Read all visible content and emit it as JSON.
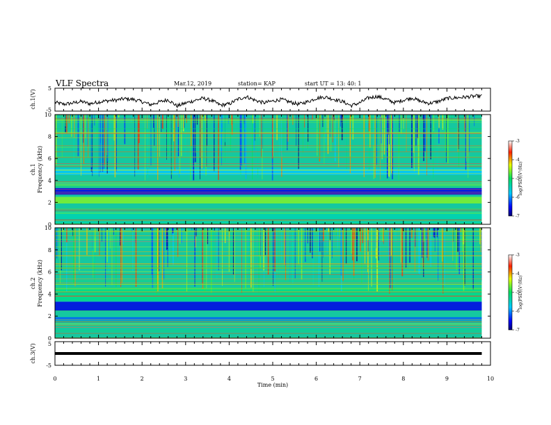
{
  "header": {
    "title": "VLF Spectra",
    "date": "Mar.12, 2019",
    "station": "station= KAP",
    "start": "start UT = 13: 40: 1"
  },
  "colors": {
    "spectrogram_background": "#15c8a0",
    "waveform_line": "#000000"
  },
  "chart_data": [
    {
      "type": "line",
      "name_label": "ch.1(V)",
      "ylabel": "ch.1(V)",
      "ylim": [
        -5,
        5
      ],
      "yticks": [
        "5",
        "-5"
      ],
      "xlim": [
        0,
        10
      ],
      "x": [
        0,
        0.2,
        0.4,
        0.6,
        0.8,
        1.0,
        1.2,
        1.4,
        1.6,
        1.8,
        2.0,
        2.2,
        2.4,
        2.6,
        2.8,
        3.0,
        3.2,
        3.4,
        3.6,
        3.8,
        4.0,
        4.2,
        4.4,
        4.6,
        4.8,
        5.0,
        5.2,
        5.4,
        5.6,
        5.8,
        6.0,
        6.2,
        6.4,
        6.6,
        6.8,
        7.0,
        7.2,
        7.4,
        7.6,
        7.8,
        8.0,
        8.2,
        8.4,
        8.6,
        8.8,
        9.0,
        9.2,
        9.4,
        9.6,
        9.8
      ],
      "y": [
        -1.2,
        -2.0,
        -1.5,
        -0.8,
        -1.8,
        -1.0,
        -0.5,
        -0.2,
        0.4,
        0.1,
        -0.9,
        -2.2,
        -1.0,
        0.0,
        -2.8,
        -1.5,
        -0.4,
        0.6,
        -0.4,
        -2.4,
        -1.9,
        0.2,
        1.3,
        -0.3,
        -1.4,
        -0.6,
        0.1,
        -1.1,
        -2.0,
        -0.9,
        0.6,
        1.2,
        0.2,
        -0.8,
        -2.6,
        -1.4,
        0.8,
        1.4,
        0.2,
        -1.3,
        -0.2,
        0.8,
        -0.8,
        -1.6,
        -0.8,
        0.5,
        0.8,
        1.1,
        1.4,
        1.6
      ]
    },
    {
      "type": "heatmap",
      "ylabel": "ch.1 Frequency (kHz)",
      "ylabel_line1": "ch.1",
      "ylabel_line2": "Frequency (kHz)",
      "xlim": [
        0,
        10
      ],
      "ylim": [
        0,
        10
      ],
      "yticks": [
        "0",
        "2",
        "4",
        "6",
        "8",
        "10"
      ],
      "bands": [
        {
          "from": 2.7,
          "to": 3.3,
          "level": -6.6
        },
        {
          "from": 1.9,
          "to": 2.5,
          "level": -4.6
        },
        {
          "from": 4.5,
          "to": 5.1,
          "level": -5.8
        },
        {
          "from": 0.0,
          "to": 1.2,
          "level": -5.4
        }
      ],
      "colorbar": {
        "label": "log(PSD)(V²/Hz)",
        "range": [
          -7,
          -3
        ],
        "ticks": [
          "-3",
          "-4",
          "-5",
          "-6",
          "-7"
        ]
      }
    },
    {
      "type": "heatmap",
      "ylabel": "ch.2 Frequency (kHz)",
      "ylabel_line1": "ch.2",
      "ylabel_line2": "Frequency (kHz)",
      "xlim": [
        0,
        10
      ],
      "ylim": [
        0,
        10
      ],
      "yticks": [
        "0",
        "2",
        "4",
        "6",
        "8",
        "10"
      ],
      "bands": [
        {
          "from": 2.5,
          "to": 3.3,
          "level": -6.6
        },
        {
          "from": 1.6,
          "to": 1.9,
          "level": -6.2
        },
        {
          "from": 3.4,
          "to": 4.6,
          "level": -5.2
        }
      ],
      "colorbar": {
        "label": "log(PSD)(V²/Hz)",
        "range": [
          -7,
          -3
        ],
        "ticks": [
          "-3",
          "-4",
          "-5",
          "-6",
          "-7"
        ]
      }
    },
    {
      "type": "line",
      "ylabel": "ch.3(V)",
      "ylim": [
        -5,
        5
      ],
      "yticks": [
        "5",
        "-5"
      ],
      "xlim": [
        0,
        10
      ],
      "x": [
        0,
        9.8
      ],
      "y": [
        0,
        0
      ],
      "xlabel": "Time (min)",
      "xticks": [
        "0",
        "1",
        "2",
        "3",
        "4",
        "5",
        "6",
        "7",
        "8",
        "9",
        "10"
      ]
    }
  ]
}
